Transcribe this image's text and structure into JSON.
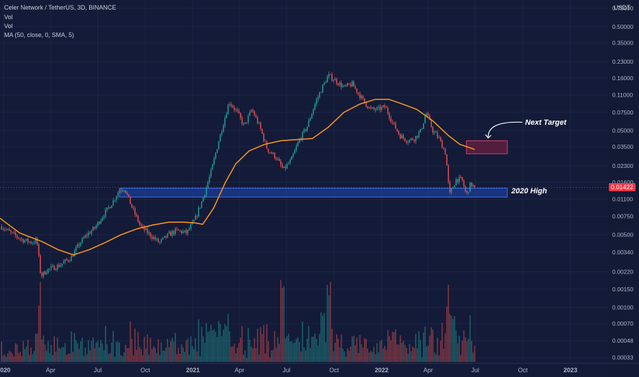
{
  "header": {
    "symbol_line": "Celer Network / TetherUS, 3D, BINANCE",
    "indicators": [
      "Vol",
      "Vol",
      "MA (50, close, 0, SMA, 5)"
    ]
  },
  "price_axis": {
    "unit_label": "USDT",
    "ticks": [
      "0.75000",
      "0.50000",
      "0.35000",
      "0.23000",
      "0.16000",
      "0.11000",
      "0.07500",
      "0.05000",
      "0.03500",
      "0.02300",
      "0.01600",
      "0.01100",
      "0.00750",
      "0.00500",
      "0.00340",
      "0.00220",
      "0.00150",
      "0.00100",
      "0.00070",
      "0.00048",
      "0.00033"
    ],
    "current_price": "0.01422",
    "current_price_color": "#f23645"
  },
  "time_axis": {
    "labels": [
      "2020",
      "Apr",
      "Jul",
      "Oct",
      "2021",
      "Apr",
      "Jul",
      "Oct",
      "2022",
      "Apr",
      "Jul",
      "Oct",
      "2023"
    ]
  },
  "annotations": {
    "resistance_zone_label": "2020 High",
    "target_label": "Next Target"
  },
  "colors": {
    "background": "#131b38",
    "up_candle": "#26a69a",
    "down_candle": "#ef5350",
    "ma_line": "#f7931a",
    "zone_fill": "#1e3f99",
    "zone_border": "#3d6ef0",
    "target_fill": "#5a1f3e",
    "target_border": "#e0406b"
  },
  "chart_data": {
    "type": "candlestick",
    "y_scale": "log",
    "ylabel": "USDT",
    "xlim": [
      "2019-12-25",
      "2023-03-15"
    ],
    "ylim": [
      0.0003,
      0.9
    ],
    "price_series": {
      "name": "Celer Network / TetherUS",
      "closes": [
        [
          "2019-12-28",
          0.006
        ],
        [
          "2020-01-15",
          0.0052
        ],
        [
          "2020-02-05",
          0.0045
        ],
        [
          "2020-02-25",
          0.0042
        ],
        [
          "2020-03-05",
          0.0045
        ],
        [
          "2020-03-13",
          0.002
        ],
        [
          "2020-03-25",
          0.0023
        ],
        [
          "2020-04-15",
          0.0025
        ],
        [
          "2020-05-10",
          0.003
        ],
        [
          "2020-05-28",
          0.0042
        ],
        [
          "2020-06-10",
          0.005
        ],
        [
          "2020-06-25",
          0.0058
        ],
        [
          "2020-07-10",
          0.0075
        ],
        [
          "2020-07-28",
          0.01
        ],
        [
          "2020-08-12",
          0.0135
        ],
        [
          "2020-08-22",
          0.014
        ],
        [
          "2020-09-05",
          0.0092
        ],
        [
          "2020-09-22",
          0.006
        ],
        [
          "2020-10-10",
          0.005
        ],
        [
          "2020-10-28",
          0.0042
        ],
        [
          "2020-11-15",
          0.005
        ],
        [
          "2020-11-30",
          0.0055
        ],
        [
          "2020-12-20",
          0.0052
        ],
        [
          "2021-01-05",
          0.007
        ],
        [
          "2021-01-20",
          0.011
        ],
        [
          "2021-02-05",
          0.02
        ],
        [
          "2021-02-20",
          0.04
        ],
        [
          "2021-03-05",
          0.07
        ],
        [
          "2021-03-12",
          0.095
        ],
        [
          "2021-03-28",
          0.075
        ],
        [
          "2021-04-10",
          0.055
        ],
        [
          "2021-04-25",
          0.08
        ],
        [
          "2021-05-10",
          0.055
        ],
        [
          "2021-05-25",
          0.033
        ],
        [
          "2021-06-10",
          0.028
        ],
        [
          "2021-06-25",
          0.021
        ],
        [
          "2021-07-10",
          0.026
        ],
        [
          "2021-07-25",
          0.04
        ],
        [
          "2021-08-10",
          0.055
        ],
        [
          "2021-08-25",
          0.09
        ],
        [
          "2021-09-08",
          0.13
        ],
        [
          "2021-09-20",
          0.17
        ],
        [
          "2021-10-05",
          0.15
        ],
        [
          "2021-10-20",
          0.13
        ],
        [
          "2021-11-05",
          0.14
        ],
        [
          "2021-11-25",
          0.1
        ],
        [
          "2021-12-10",
          0.08
        ],
        [
          "2021-12-25",
          0.08
        ],
        [
          "2022-01-08",
          0.085
        ],
        [
          "2022-01-22",
          0.06
        ],
        [
          "2022-02-05",
          0.045
        ],
        [
          "2022-02-20",
          0.04
        ],
        [
          "2022-03-05",
          0.042
        ],
        [
          "2022-03-18",
          0.05
        ],
        [
          "2022-03-28",
          0.075
        ],
        [
          "2022-04-10",
          0.05
        ],
        [
          "2022-04-22",
          0.042
        ],
        [
          "2022-05-05",
          0.03
        ],
        [
          "2022-05-12",
          0.012
        ],
        [
          "2022-05-25",
          0.017
        ],
        [
          "2022-06-05",
          0.017
        ],
        [
          "2022-06-14",
          0.012
        ],
        [
          "2022-06-22",
          0.0155
        ],
        [
          "2022-06-30",
          0.0142
        ]
      ]
    },
    "series": [
      {
        "name": "MA (50, close, 0, SMA, 5)",
        "points": [
          [
            "2019-12-25",
            0.0072
          ],
          [
            "2020-02-01",
            0.0052
          ],
          [
            "2020-03-15",
            0.0043
          ],
          [
            "2020-04-15",
            0.0036
          ],
          [
            "2020-05-15",
            0.0032
          ],
          [
            "2020-06-15",
            0.0036
          ],
          [
            "2020-07-15",
            0.0042
          ],
          [
            "2020-08-15",
            0.005
          ],
          [
            "2020-09-15",
            0.0057
          ],
          [
            "2020-10-15",
            0.0062
          ],
          [
            "2020-11-15",
            0.0066
          ],
          [
            "2020-12-15",
            0.0066
          ],
          [
            "2021-01-05",
            0.0065
          ],
          [
            "2021-01-20",
            0.0063
          ],
          [
            "2021-02-10",
            0.009
          ],
          [
            "2021-03-05",
            0.016
          ],
          [
            "2021-03-25",
            0.024
          ],
          [
            "2021-04-20",
            0.032
          ],
          [
            "2021-05-20",
            0.037
          ],
          [
            "2021-06-20",
            0.04
          ],
          [
            "2021-07-20",
            0.041
          ],
          [
            "2021-08-20",
            0.042
          ],
          [
            "2021-09-20",
            0.054
          ],
          [
            "2021-10-20",
            0.075
          ],
          [
            "2021-11-20",
            0.09
          ],
          [
            "2021-12-20",
            0.1
          ],
          [
            "2022-01-15",
            0.1
          ],
          [
            "2022-02-10",
            0.09
          ],
          [
            "2022-03-10",
            0.08
          ],
          [
            "2022-04-10",
            0.062
          ],
          [
            "2022-05-10",
            0.045
          ],
          [
            "2022-06-01",
            0.037
          ],
          [
            "2022-06-30",
            0.033
          ]
        ]
      }
    ],
    "volume_scale_hint": "relative",
    "volume_spikes": [
      [
        "2020-03-13",
        0.3
      ],
      [
        "2021-02-25",
        0.35
      ],
      [
        "2021-03-10",
        0.45
      ],
      [
        "2021-06-22",
        1.0
      ],
      [
        "2021-09-20",
        0.9
      ],
      [
        "2021-09-08",
        0.65
      ],
      [
        "2022-01-25",
        0.35
      ],
      [
        "2022-05-12",
        0.55
      ],
      [
        "2022-05-20",
        0.6
      ],
      [
        "2022-06-14",
        0.3
      ]
    ],
    "zones": [
      {
        "label": "2020 High",
        "y_low": 0.0115,
        "y_high": 0.014,
        "x_start": "2020-08-12",
        "x_end": "2022-09-01"
      },
      {
        "label": "Next Target",
        "y_low": 0.03,
        "y_high": 0.04,
        "x_start": "2022-06-14",
        "x_end": "2022-09-01"
      }
    ],
    "grid": true,
    "legend": "top-left"
  }
}
